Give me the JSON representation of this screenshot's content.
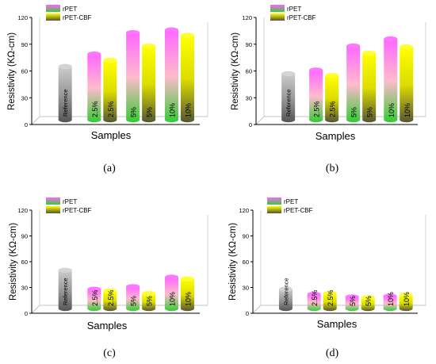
{
  "chart_data": [
    {
      "type": "bar",
      "panel_label": "(a)",
      "categories": [
        "Reference",
        "2.5%",
        "5%",
        "10%"
      ],
      "series": [
        {
          "name": "rPET",
          "values": [
            null,
            79,
            103,
            106
          ]
        },
        {
          "name": "rPET-CBF",
          "values": [
            null,
            72,
            88,
            100
          ]
        }
      ],
      "reference_value": 65,
      "ylabel": "Resistivity (KΩ-cm)",
      "xlabel": "Samples",
      "yticks": [
        "0",
        "30",
        "60",
        "90",
        "120"
      ],
      "ylim": [
        0,
        120
      ],
      "legend_position": "top-left",
      "grid": false
    },
    {
      "type": "bar",
      "panel_label": "(b)",
      "categories": [
        "Reference",
        "2.5%",
        "5%",
        "10%"
      ],
      "series": [
        {
          "name": "rPET",
          "values": [
            null,
            61,
            88,
            96
          ]
        },
        {
          "name": "rPET-CBF",
          "values": [
            null,
            55,
            80,
            87
          ]
        }
      ],
      "reference_value": 57,
      "ylabel": "Resistivity (KΩ-cm)",
      "xlabel": "Samples",
      "yticks": [
        "0",
        "30",
        "60",
        "90",
        "120"
      ],
      "ylim": [
        0,
        120
      ],
      "legend_position": "top-left",
      "grid": false
    },
    {
      "type": "bar",
      "panel_label": "(c)",
      "categories": [
        "Reference",
        "2.5%",
        "5%",
        "10%"
      ],
      "series": [
        {
          "name": "rPET",
          "values": [
            null,
            28,
            31,
            42
          ]
        },
        {
          "name": "rPET-CBF",
          "values": [
            null,
            26,
            23,
            40
          ]
        }
      ],
      "reference_value": 50,
      "ylabel": "Resistivity (KΩ-cm)",
      "xlabel": "Samples",
      "yticks": [
        "0",
        "30",
        "60",
        "90",
        "120"
      ],
      "ylim": [
        0,
        120
      ],
      "legend_position": "top-left",
      "grid": false
    },
    {
      "type": "bar",
      "panel_label": "(d)",
      "categories": [
        "Reference",
        "2.5%",
        "5%",
        "10%"
      ],
      "series": [
        {
          "name": "rPET",
          "values": [
            null,
            22,
            19,
            20
          ]
        },
        {
          "name": "rPET-CBF",
          "values": [
            null,
            23,
            18,
            21
          ]
        }
      ],
      "reference_value": 28,
      "ylabel": "Resistivity (KΩ-cm)",
      "xlabel": "Samples",
      "yticks": [
        "0",
        "30",
        "60",
        "90",
        "120"
      ],
      "ylim": [
        0,
        120
      ],
      "legend_position": "top-left",
      "grid": false
    }
  ],
  "colors": {
    "rpet_top": "#ff66ff",
    "rpet_bottom": "#33cc33",
    "cbf_top": "#ffff00",
    "cbf_bottom": "#555533",
    "reference_top": "#cccccc",
    "reference_bottom": "#555555"
  }
}
